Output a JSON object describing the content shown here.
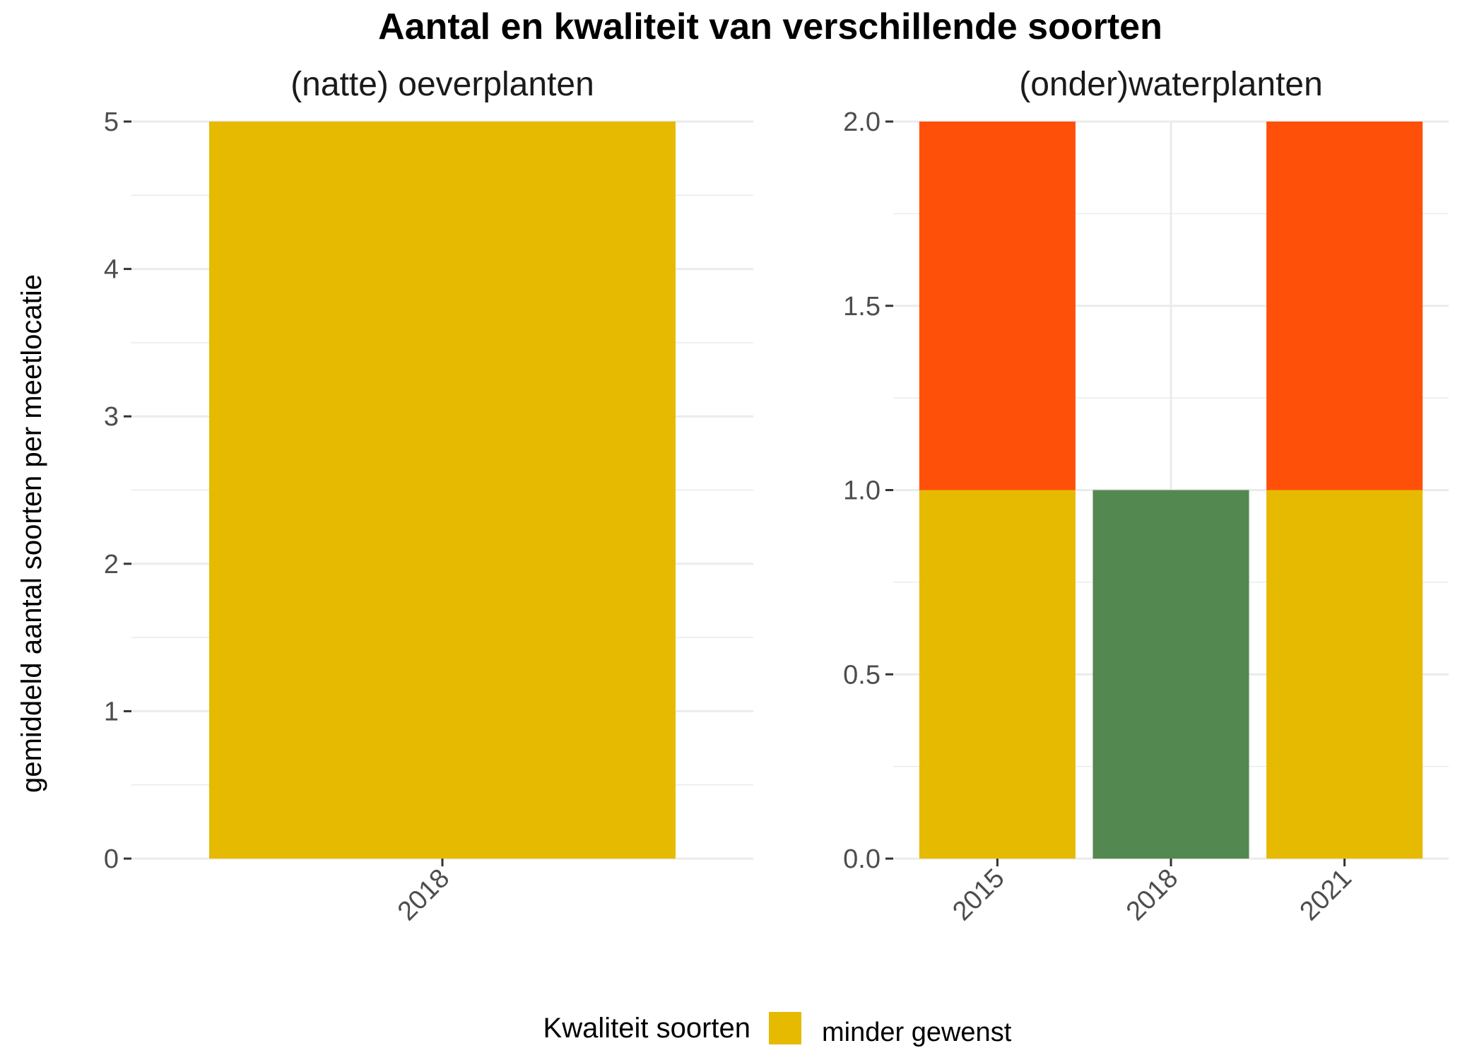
{
  "chart_data": {
    "type": "bar",
    "title": "Aantal en kwaliteit van verschillende soorten",
    "ylabel": "gemiddeld aantal soorten per meetlocatie",
    "legend": {
      "title": "Kwaliteit soorten",
      "placement": "bottom",
      "entries": [
        {
          "label": "minder gewenst",
          "color": "#E6BA00"
        }
      ]
    },
    "colors": {
      "minder_gewenst": "#E6BA00",
      "orange": "#FF500A",
      "green": "#538850"
    },
    "panels": [
      {
        "title": "(natte) oeverplanten",
        "categories": [
          "2018"
        ],
        "ylim": [
          0,
          5
        ],
        "yticks": [
          "0",
          "1",
          "2",
          "3",
          "4",
          "5"
        ],
        "stacks": [
          {
            "category": "2018",
            "segments": [
              {
                "value": 5,
                "color": "#E6BA00"
              }
            ]
          }
        ]
      },
      {
        "title": "(onder)waterplanten",
        "categories": [
          "2015",
          "2018",
          "2021"
        ],
        "ylim": [
          0,
          2
        ],
        "yticks": [
          "0.0",
          "0.5",
          "1.0",
          "1.5",
          "2.0"
        ],
        "stacks": [
          {
            "category": "2015",
            "segments": [
              {
                "value": 1,
                "color": "#E6BA00"
              },
              {
                "value": 1,
                "color": "#FF500A"
              }
            ]
          },
          {
            "category": "2018",
            "segments": [
              {
                "value": 1,
                "color": "#538850"
              }
            ]
          },
          {
            "category": "2021",
            "segments": [
              {
                "value": 1,
                "color": "#E6BA00"
              },
              {
                "value": 1,
                "color": "#FF500A"
              }
            ]
          }
        ]
      }
    ]
  }
}
